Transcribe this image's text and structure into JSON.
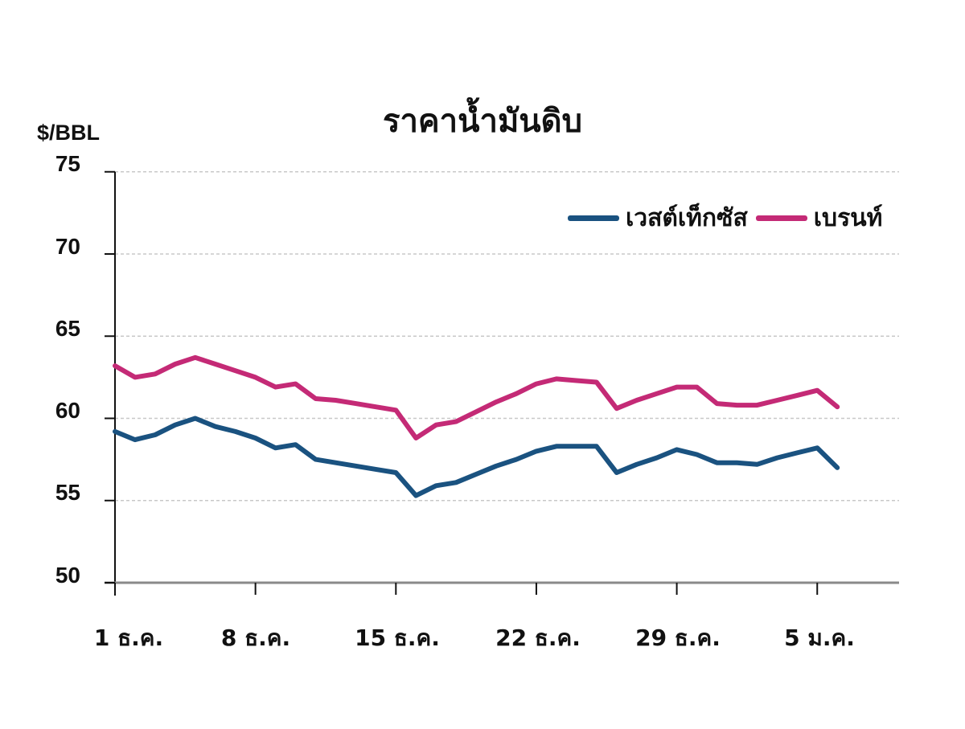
{
  "chart_data": {
    "type": "line",
    "title": "ราคาน้ำมันดิบ",
    "ylabel": "$/BBL",
    "xlabel": "",
    "ylim": [
      50,
      75
    ],
    "yticks": [
      50,
      55,
      60,
      65,
      70,
      75
    ],
    "grid": "horizontal dashed",
    "legend_position": "top-right",
    "xtick_labels": [
      "1 ธ.ค.",
      "8 ธ.ค.",
      "15 ธ.ค.",
      "22 ธ.ค.",
      "29 ธ.ค.",
      "5 ม.ค."
    ],
    "xtick_positions": [
      0,
      7,
      14,
      21,
      28,
      35
    ],
    "x": [
      0,
      1,
      2,
      3,
      4,
      5,
      6,
      7,
      8,
      9,
      10,
      11,
      12,
      13,
      14,
      15,
      16,
      17,
      18,
      19,
      20,
      21,
      22,
      23,
      24,
      25,
      26,
      27,
      28,
      29,
      30,
      31,
      32,
      33,
      34,
      35,
      36
    ],
    "series": [
      {
        "name": "เวสต์เท็กซัส",
        "color": "#1a5280",
        "values": [
          59.2,
          58.7,
          59.0,
          59.6,
          60.0,
          59.5,
          59.2,
          58.8,
          58.2,
          58.4,
          57.5,
          57.3,
          57.1,
          56.9,
          56.7,
          55.3,
          55.9,
          56.1,
          56.6,
          57.1,
          57.5,
          58.0,
          58.3,
          58.3,
          58.3,
          56.7,
          57.2,
          57.6,
          58.1,
          57.8,
          57.3,
          57.3,
          57.2,
          57.6,
          57.9,
          58.2,
          57.0
        ]
      },
      {
        "name": "เบรนท์",
        "color": "#c42a76",
        "values": [
          63.2,
          62.5,
          62.7,
          63.3,
          63.7,
          63.3,
          62.9,
          62.5,
          61.9,
          62.1,
          61.2,
          61.1,
          60.9,
          60.7,
          60.5,
          58.8,
          59.6,
          59.8,
          60.4,
          61.0,
          61.5,
          62.1,
          62.4,
          62.3,
          62.2,
          60.6,
          61.1,
          61.5,
          61.9,
          61.9,
          60.9,
          60.8,
          60.8,
          61.1,
          61.4,
          61.7,
          60.7
        ]
      }
    ]
  },
  "labels": {
    "title": "ราคาน้ำมันดิบ",
    "ylabel": "$/BBL",
    "legend": [
      "เวสต์เท็กซัส",
      "เบรนท์"
    ],
    "yticks": [
      "50",
      "55",
      "60",
      "65",
      "70",
      "75"
    ],
    "xticks": [
      "1 ธ.ค.",
      "8 ธ.ค.",
      "15 ธ.ค.",
      "22 ธ.ค.",
      "29 ธ.ค.",
      "5 ม.ค."
    ]
  }
}
